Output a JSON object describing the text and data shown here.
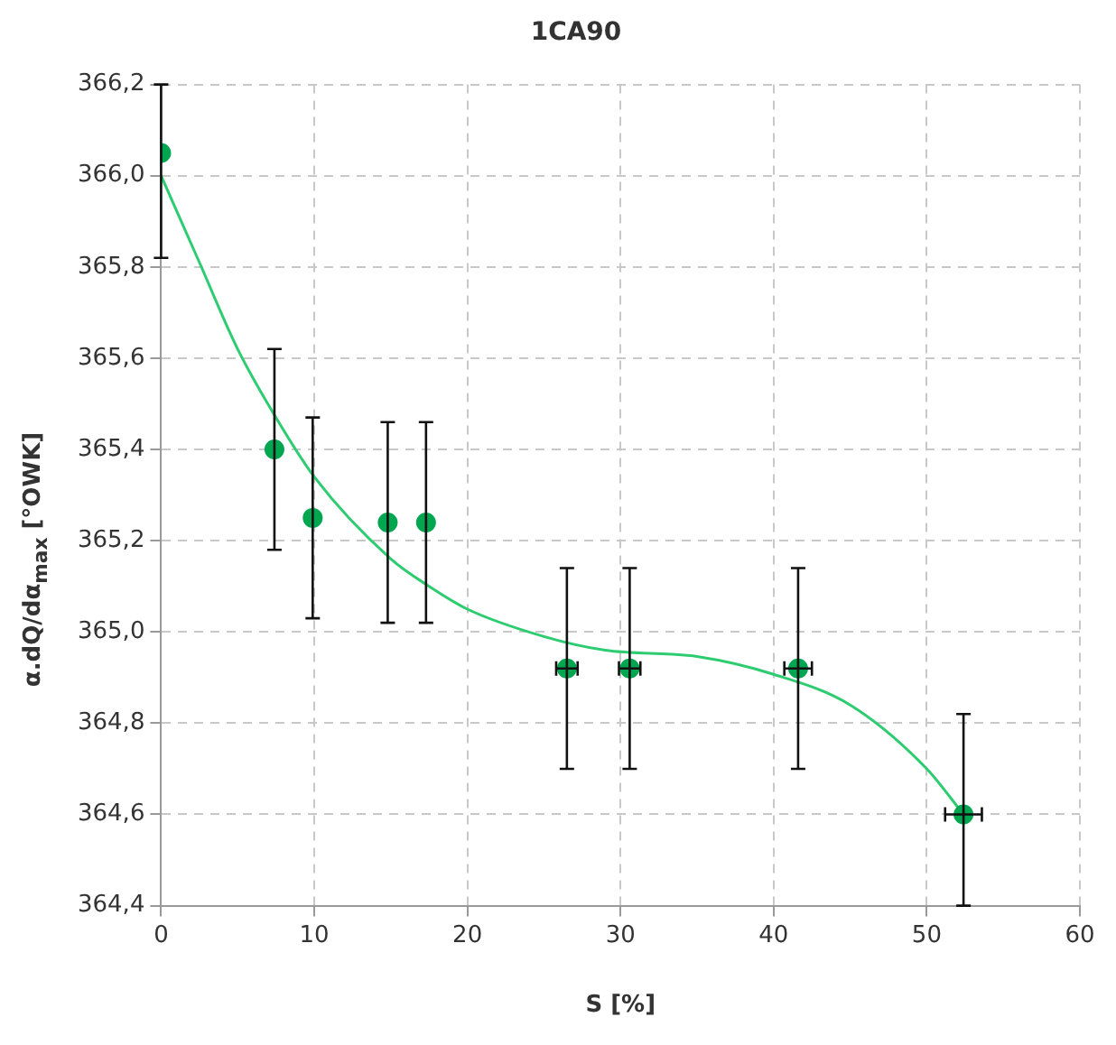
{
  "chart_data": {
    "type": "scatter",
    "title": "1CA90",
    "xlabel": "S [%]",
    "ylabel": "α.dQ/dα$_{max}$ [°OWK]",
    "xlim": [
      0,
      60
    ],
    "xticks": [
      0,
      10,
      20,
      30,
      40,
      50,
      60
    ],
    "ylim": [
      364.4,
      366.2
    ],
    "yticks": [
      {
        "value": 364.4,
        "label": "364,4"
      },
      {
        "value": 364.6,
        "label": "364,6"
      },
      {
        "value": 364.8,
        "label": "364,8"
      },
      {
        "value": 365.0,
        "label": "365,0"
      },
      {
        "value": 365.2,
        "label": "365,2"
      },
      {
        "value": 365.4,
        "label": "365,4"
      },
      {
        "value": 365.6,
        "label": "365,6"
      },
      {
        "value": 365.8,
        "label": "365,8"
      },
      {
        "value": 366.0,
        "label": "366,0"
      },
      {
        "value": 366.2,
        "label": "366,2"
      }
    ],
    "grid": true,
    "legend": false,
    "series": [
      {
        "color": "#00a650",
        "marker": "circle",
        "x": [
          0,
          7.4,
          9.9,
          14.8,
          17.3,
          26.5,
          30.6,
          41.6,
          52.4
        ],
        "values": [
          366.05,
          365.4,
          365.25,
          365.24,
          365.24,
          364.92,
          364.92,
          364.92,
          364.6
        ],
        "errors": [
          [
            365.82,
            366.2
          ],
          0.22,
          0.22,
          0.22,
          0.22,
          0.22,
          0.22,
          0.22,
          [
            364.4,
            364.82
          ]
        ],
        "xerrors": [
          null,
          null,
          null,
          null,
          null,
          0.7,
          0.7,
          0.9,
          1.2
        ]
      },
      {
        "type": "line",
        "color": "#2ecc71",
        "marker": "none",
        "x": [
          0,
          2.5,
          5,
          7.5,
          10,
          15,
          17.5,
          20,
          25,
          29,
          35,
          40,
          45,
          50,
          52.4
        ],
        "values": [
          366.0,
          365.81,
          365.62,
          365.47,
          365.34,
          365.16,
          365.1,
          365.05,
          364.99,
          364.96,
          364.946,
          364.907,
          364.84,
          364.7,
          364.6
        ]
      }
    ]
  }
}
